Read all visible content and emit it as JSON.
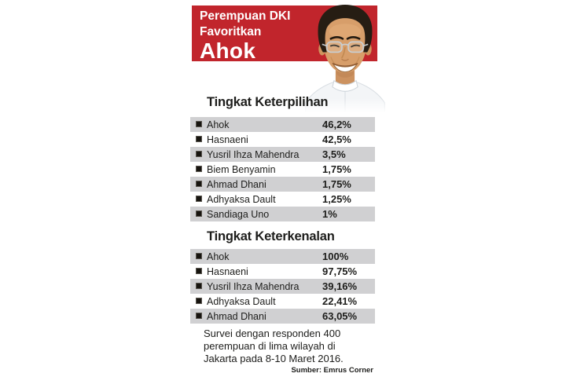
{
  "header": {
    "line1": "Perempuan DKI",
    "line2": "Favoritkan",
    "line3": "Ahok"
  },
  "photo": {
    "description": "Ahok portrait, smiling man with rimless glasses and white shirt"
  },
  "sections": [
    {
      "heading": "Tingkat Keterpilihan",
      "rows": [
        {
          "label": "Ahok",
          "value": "46,2%"
        },
        {
          "label": "Hasnaeni",
          "value": "42,5%"
        },
        {
          "label": "Yusril Ihza Mahendra",
          "value": "3,5%"
        },
        {
          "label": "Biem Benyamin",
          "value": "1,75%"
        },
        {
          "label": "Ahmad Dhani",
          "value": "1,75%"
        },
        {
          "label": "Adhyaksa Dault",
          "value": "1,25%"
        },
        {
          "label": "Sandiaga Uno",
          "value": "1%"
        }
      ]
    },
    {
      "heading": "Tingkat Keterkenalan",
      "rows": [
        {
          "label": "Ahok",
          "value": "100%"
        },
        {
          "label": "Hasnaeni",
          "value": "97,75%"
        },
        {
          "label": "Yusril Ihza Mahendra",
          "value": "39,16%"
        },
        {
          "label": "Adhyaksa Dault",
          "value": "22,41%"
        },
        {
          "label": "Ahmad Dhani",
          "value": "63,05%"
        }
      ]
    }
  ],
  "footer": {
    "note_lines": [
      "Survei dengan responden 400",
      "perempuan di lima wilayah di",
      "Jakarta pada 8-10 Maret 2016."
    ],
    "source": "Sumber: Emrus Corner"
  },
  "colors": {
    "red": "#c1252c",
    "row-gray": "#d0d0d2",
    "text": "#1d1d1b"
  },
  "chart_data": [
    {
      "type": "table",
      "title": "Tingkat Keterpilihan",
      "categories": [
        "Ahok",
        "Hasnaeni",
        "Yusril Ihza Mahendra",
        "Biem Benyamin",
        "Ahmad Dhani",
        "Adhyaksa Dault",
        "Sandiaga Uno"
      ],
      "values": [
        46.2,
        42.5,
        3.5,
        1.75,
        1.75,
        1.25,
        1.0
      ],
      "value_labels": [
        "46,2%",
        "42,5%",
        "3,5%",
        "1,75%",
        "1,75%",
        "1,25%",
        "1%"
      ],
      "unit": "%"
    },
    {
      "type": "table",
      "title": "Tingkat Keterkenalan",
      "categories": [
        "Ahok",
        "Hasnaeni",
        "Yusril Ihza Mahendra",
        "Adhyaksa Dault",
        "Ahmad Dhani"
      ],
      "values": [
        100,
        97.75,
        39.16,
        22.41,
        63.05
      ],
      "value_labels": [
        "100%",
        "97,75%",
        "39,16%",
        "22,41%",
        "63,05%"
      ],
      "unit": "%"
    }
  ]
}
